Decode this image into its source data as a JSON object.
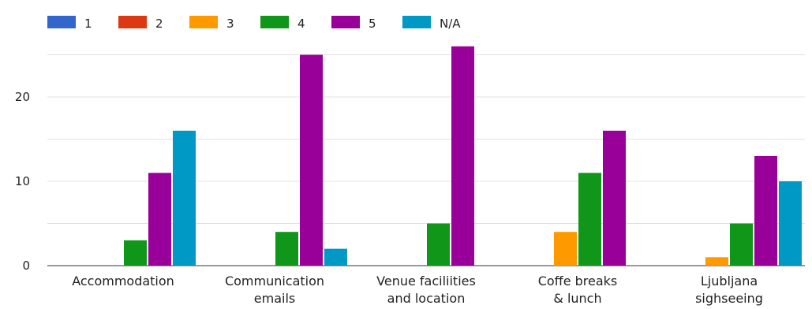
{
  "chart_data": {
    "type": "bar",
    "categories": [
      [
        "Accommodation"
      ],
      [
        "Communication",
        "emails"
      ],
      [
        "Venue faciliities",
        "and location"
      ],
      [
        "Coffe breaks",
        "& lunch"
      ],
      [
        "Ljubljana",
        "sighseeing"
      ]
    ],
    "series": [
      {
        "name": "1",
        "color": "#3366cc",
        "values": [
          0,
          0,
          0,
          0,
          0
        ]
      },
      {
        "name": "2",
        "color": "#dc3912",
        "values": [
          0,
          0,
          0,
          0,
          0
        ]
      },
      {
        "name": "3",
        "color": "#ff9900",
        "values": [
          0,
          0,
          0,
          4,
          1
        ]
      },
      {
        "name": "4",
        "color": "#109618",
        "values": [
          3,
          4,
          5,
          11,
          5
        ]
      },
      {
        "name": "5",
        "color": "#990099",
        "values": [
          11,
          25,
          26,
          16,
          13
        ]
      },
      {
        "name": "N/A",
        "color": "#0099c6",
        "values": [
          16,
          2,
          0,
          0,
          10
        ]
      }
    ],
    "yticks": [
      0,
      10,
      20
    ],
    "ylim": [
      0,
      27
    ],
    "grid": true,
    "legend": "top-left"
  }
}
